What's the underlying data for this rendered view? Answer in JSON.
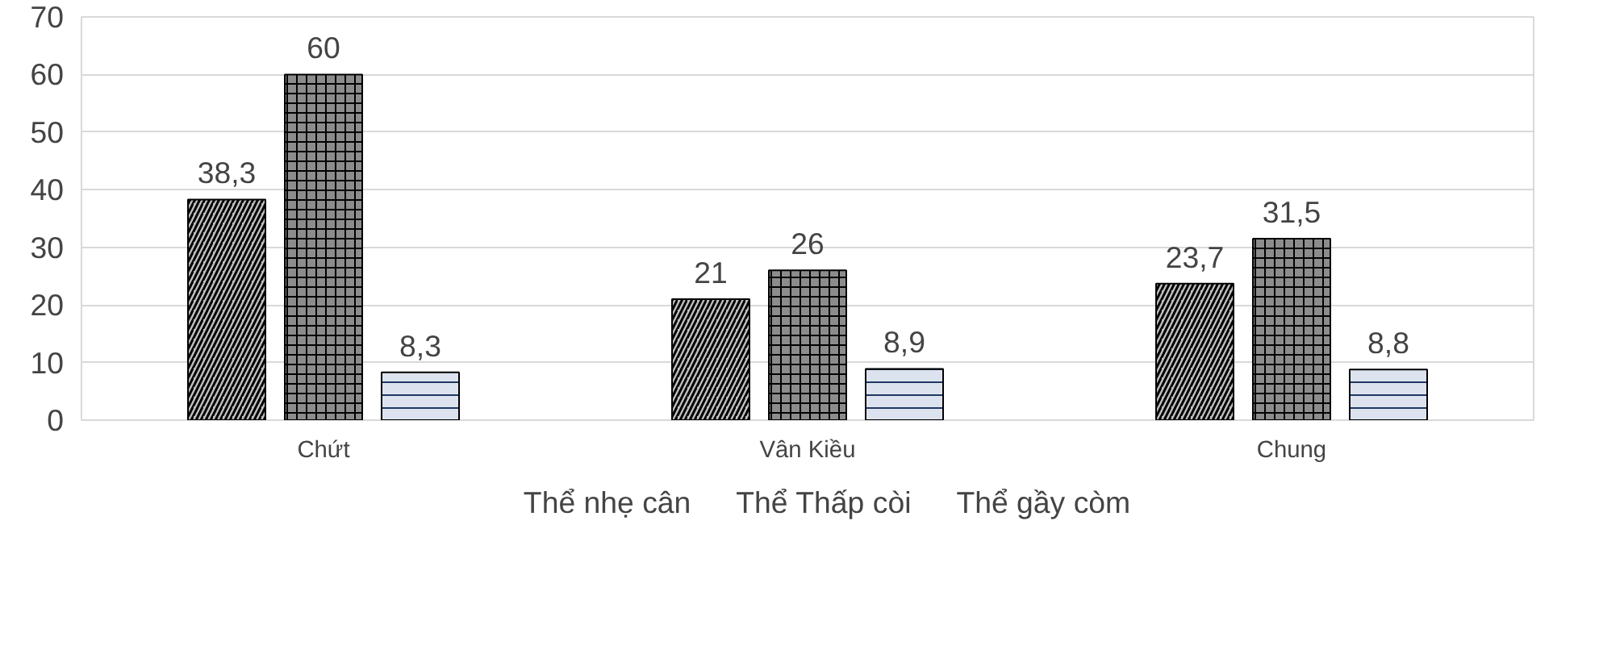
{
  "chart_data": {
    "type": "bar",
    "categories": [
      "Chứt",
      "Vân Kiều",
      "Chung"
    ],
    "series": [
      {
        "name": "Thể nhẹ cân",
        "color": "#bfbfbf",
        "values": [
          38.3,
          21,
          23.7
        ],
        "value_labels": [
          "38,3",
          "21",
          "23,7"
        ]
      },
      {
        "name": "Thể Thấp còi",
        "color": "#8c8c8c",
        "values": [
          60,
          26,
          31.5
        ],
        "value_labels": [
          "60",
          "26",
          "31,5"
        ]
      },
      {
        "name": "Thể gầy còm",
        "color": "#dde3ee",
        "values": [
          8.3,
          8.9,
          8.8
        ],
        "value_labels": [
          "8,3",
          "8,9",
          "8,8"
        ]
      }
    ],
    "ylim": [
      0,
      70
    ],
    "yticks": [
      0,
      10,
      20,
      30,
      40,
      50,
      60,
      70
    ],
    "grid": "y",
    "legend": "bottom"
  }
}
